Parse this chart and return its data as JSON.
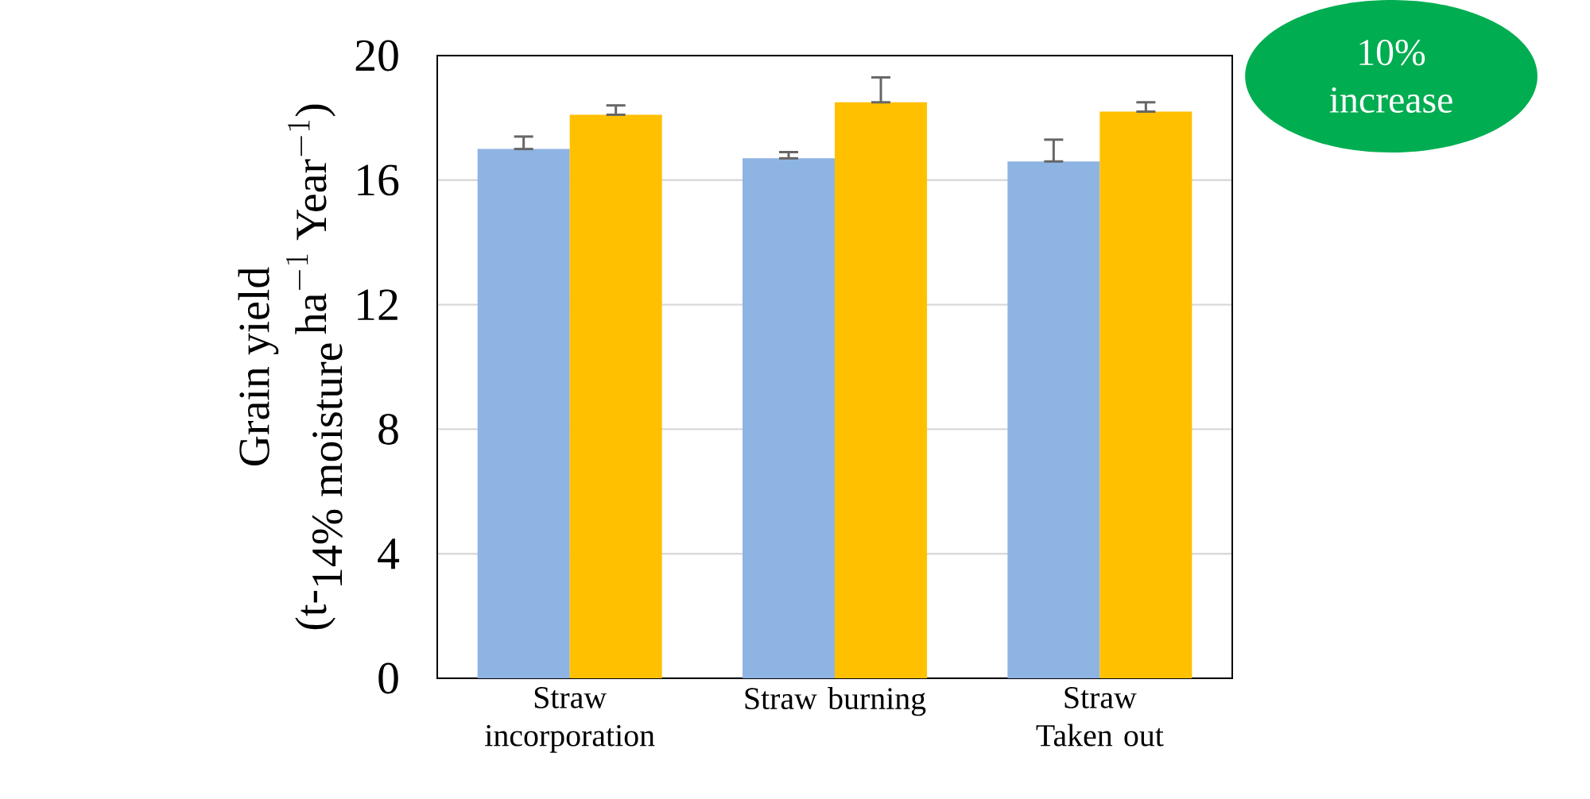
{
  "chart_data": {
    "type": "bar",
    "ylabel": "\\begin{array}{c}\\textrm{Grain yield}\\\\ \\textrm{(t-}_{\\textrm{14\\% moisture}}\\,\\textrm{ha}^{-1}\\;\\textrm{Year}^{-1}\\textrm{)}\\end{array}",
    "categories": [
      "Straw incorporation",
      "Straw burning",
      "Straw Taken out"
    ],
    "series": [
      {
        "color": "#8eb4e3",
        "values": [
          17.0,
          16.7,
          16.6
        ],
        "errors": [
          [
            17.0,
            17.4
          ],
          [
            16.7,
            16.9
          ],
          [
            16.6,
            17.3
          ]
        ]
      },
      {
        "color": "#ffc000",
        "values": [
          18.1,
          18.5,
          18.2
        ],
        "errors": [
          [
            18.1,
            18.4
          ],
          [
            18.5,
            19.3
          ],
          [
            18.2,
            18.5
          ]
        ]
      }
    ],
    "ylim": [
      0,
      20
    ],
    "yticks": [
      0,
      4,
      8,
      12,
      16,
      20
    ],
    "grid": "y",
    "annotations": [
      "10% increase"
    ]
  }
}
